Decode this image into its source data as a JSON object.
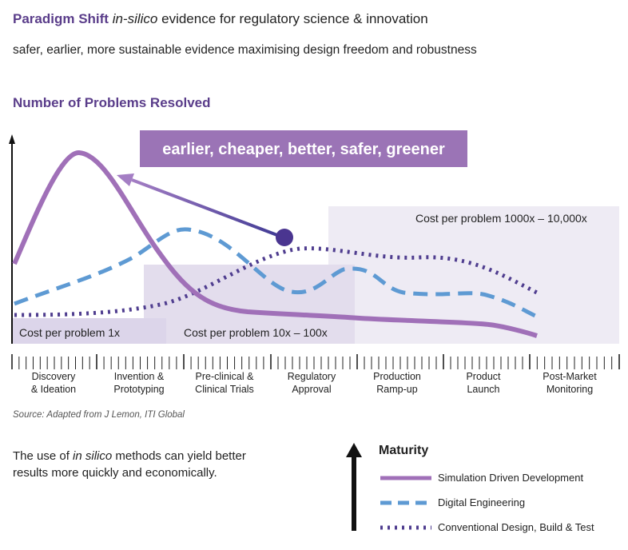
{
  "header": {
    "title_bold": "Paradigm Shift",
    "title_italic": "in-silico",
    "title_rest": " evidence for regulatory science & innovation",
    "subtitle": "safer, earlier, more sustainable evidence maximising design freedom and robustness"
  },
  "chart_section": {
    "title": "Number of Problems Resolved",
    "banner": "earlier, cheaper, better, safer, greener",
    "cost_low": "Cost per problem 1x",
    "cost_mid": "Cost per problem 10x – 100x",
    "cost_high": "Cost per problem 1000x – 10,000x"
  },
  "phases": [
    {
      "line1": "Discovery",
      "line2": "& Ideation"
    },
    {
      "line1": "Invention &",
      "line2": "Prototyping"
    },
    {
      "line1": "Pre-clinical &",
      "line2": "Clinical Trials"
    },
    {
      "line1": "Regulatory",
      "line2": "Approval"
    },
    {
      "line1": "Production",
      "line2": "Ramp-up"
    },
    {
      "line1": "Product",
      "line2": "Launch"
    },
    {
      "line1": "Post-Market",
      "line2": "Monitoring"
    }
  ],
  "source": "Source: Adapted from J Lemon, ITI Global",
  "description": {
    "part1": "The use of ",
    "italic": "in silico",
    "part2": " methods can yield better",
    "line2": "results more quickly and economically."
  },
  "legend": {
    "maturity_label": "Maturity",
    "items": [
      {
        "label": "Simulation Driven Development",
        "color": "#a070b8",
        "style": "solid"
      },
      {
        "label": "Digital Engineering",
        "color": "#5e9ad3",
        "style": "dashed"
      },
      {
        "label": "Conventional Design, Build & Test",
        "color": "#4f3d8f",
        "style": "dotted"
      }
    ]
  },
  "colors": {
    "accent_purple": "#5a3d8a",
    "banner_bg": "#9b74b6",
    "arrow_blue": "#4a6fc0",
    "dot_purple": "#4a3590"
  }
}
